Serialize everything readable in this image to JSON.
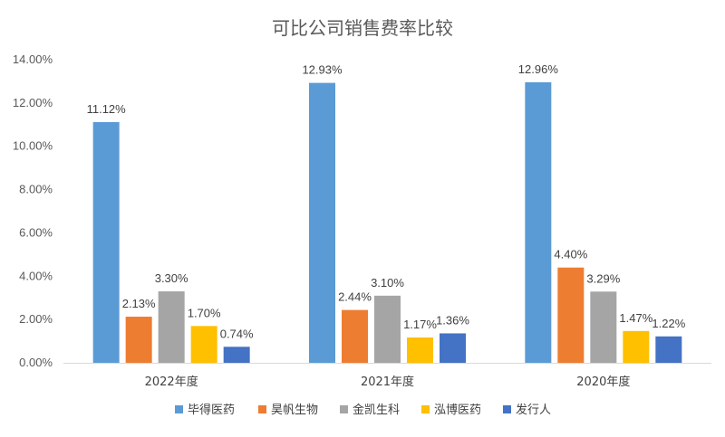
{
  "chart_data": {
    "type": "bar",
    "title": "可比公司销售费率比较",
    "xlabel": "",
    "ylabel": "",
    "categories": [
      "2022年度",
      "2021年度",
      "2020年度"
    ],
    "ylim": [
      0,
      14
    ],
    "yticks": [
      0,
      2,
      4,
      6,
      8,
      10,
      12,
      14
    ],
    "ytick_labels": [
      "0.00%",
      "2.00%",
      "4.00%",
      "6.00%",
      "8.00%",
      "10.00%",
      "12.00%",
      "14.00%"
    ],
    "grid": false,
    "legend_position": "bottom",
    "series": [
      {
        "name": "毕得医药",
        "color": "#5B9BD5",
        "values": [
          11.12,
          12.93,
          12.96
        ],
        "labels": [
          "11.12%",
          "12.93%",
          "12.96%"
        ]
      },
      {
        "name": "昊帆生物",
        "color": "#ED7D31",
        "values": [
          2.13,
          2.44,
          4.4
        ],
        "labels": [
          "2.13%",
          "2.44%",
          "4.40%"
        ]
      },
      {
        "name": "金凯生科",
        "color": "#A5A5A5",
        "values": [
          3.3,
          3.1,
          3.29
        ],
        "labels": [
          "3.30%",
          "3.10%",
          "3.29%"
        ]
      },
      {
        "name": "泓博医药",
        "color": "#FFC000",
        "values": [
          1.7,
          1.17,
          1.47
        ],
        "labels": [
          "1.70%",
          "1.17%",
          "1.47%"
        ]
      },
      {
        "name": "发行人",
        "color": "#4472C4",
        "values": [
          0.74,
          1.36,
          1.22
        ],
        "labels": [
          "0.74%",
          "1.36%",
          "1.22%"
        ]
      }
    ]
  }
}
